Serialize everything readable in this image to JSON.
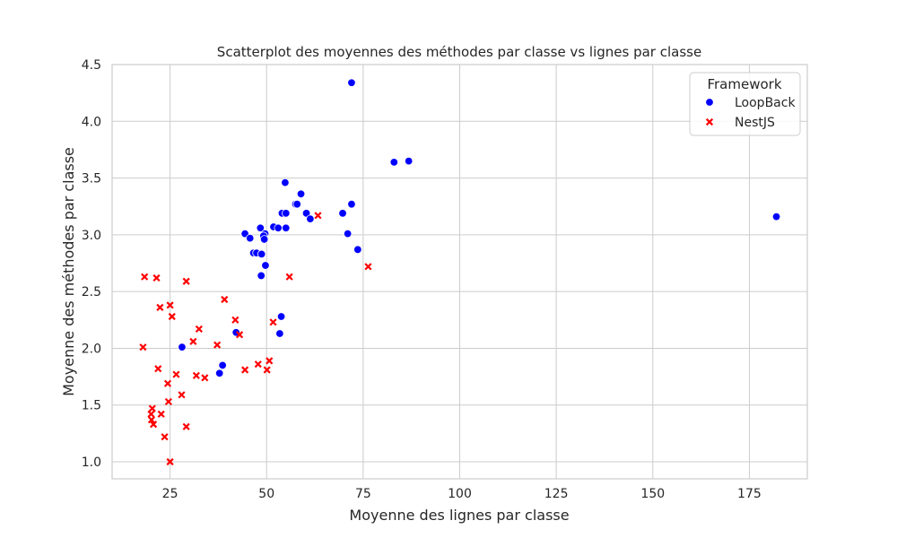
{
  "chart_data": {
    "type": "scatter",
    "title": "Scatterplot des moyennes des méthodes par classe vs lignes par classe",
    "xlabel": "Moyenne des lignes par classe",
    "ylabel": "Moyenne des méthodes par classe",
    "xlim": [
      10,
      190
    ],
    "ylim": [
      0.85,
      4.5
    ],
    "xticks": [
      25,
      50,
      75,
      100,
      125,
      150,
      175
    ],
    "yticks": [
      1.0,
      1.5,
      2.0,
      2.5,
      3.0,
      3.5,
      4.0,
      4.5
    ],
    "ytick_labels": [
      "1.0",
      "1.5",
      "2.0",
      "2.5",
      "3.0",
      "3.5",
      "4.0",
      "4.5"
    ],
    "grid": true,
    "legend": {
      "title": "Framework",
      "position": "top-right"
    },
    "series": [
      {
        "name": "LoopBack",
        "marker": "circle",
        "color": "#0000ff",
        "points": [
          [
            72.0,
            4.34
          ],
          [
            86.8,
            3.65
          ],
          [
            83.0,
            3.64
          ],
          [
            182.0,
            3.16
          ],
          [
            54.8,
            3.46
          ],
          [
            58.9,
            3.36
          ],
          [
            72.0,
            3.27
          ],
          [
            57.5,
            3.27
          ],
          [
            57.9,
            3.27
          ],
          [
            54.0,
            3.19
          ],
          [
            55.0,
            3.19
          ],
          [
            60.3,
            3.19
          ],
          [
            69.7,
            3.19
          ],
          [
            61.3,
            3.14
          ],
          [
            51.8,
            3.07
          ],
          [
            53.0,
            3.06
          ],
          [
            48.4,
            3.06
          ],
          [
            55.0,
            3.06
          ],
          [
            44.4,
            3.01
          ],
          [
            49.6,
            3.01
          ],
          [
            49.2,
            2.99
          ],
          [
            71.0,
            3.01
          ],
          [
            45.7,
            2.97
          ],
          [
            49.4,
            2.96
          ],
          [
            73.6,
            2.87
          ],
          [
            46.6,
            2.84
          ],
          [
            47.4,
            2.84
          ],
          [
            48.7,
            2.83
          ],
          [
            49.7,
            2.73
          ],
          [
            48.6,
            2.64
          ],
          [
            53.8,
            2.28
          ],
          [
            53.4,
            2.13
          ],
          [
            42.1,
            2.14
          ],
          [
            28.1,
            2.01
          ],
          [
            38.6,
            1.85
          ],
          [
            37.8,
            1.78
          ]
        ]
      },
      {
        "name": "NestJS",
        "marker": "x",
        "color": "#ff0000",
        "points": [
          [
            63.3,
            3.17
          ],
          [
            76.3,
            2.72
          ],
          [
            18.4,
            2.63
          ],
          [
            21.5,
            2.62
          ],
          [
            29.2,
            2.59
          ],
          [
            55.9,
            2.63
          ],
          [
            39.1,
            2.43
          ],
          [
            22.4,
            2.36
          ],
          [
            25.0,
            2.38
          ],
          [
            25.5,
            2.28
          ],
          [
            41.9,
            2.25
          ],
          [
            51.7,
            2.23
          ],
          [
            32.5,
            2.17
          ],
          [
            43.0,
            2.12
          ],
          [
            31.0,
            2.06
          ],
          [
            37.2,
            2.03
          ],
          [
            18.0,
            2.01
          ],
          [
            50.7,
            1.89
          ],
          [
            47.8,
            1.86
          ],
          [
            21.9,
            1.82
          ],
          [
            44.4,
            1.81
          ],
          [
            50.1,
            1.81
          ],
          [
            26.6,
            1.77
          ],
          [
            31.8,
            1.76
          ],
          [
            34.0,
            1.74
          ],
          [
            24.4,
            1.69
          ],
          [
            28.0,
            1.59
          ],
          [
            24.6,
            1.53
          ],
          [
            20.4,
            1.47
          ],
          [
            20.1,
            1.42
          ],
          [
            22.7,
            1.42
          ],
          [
            20.2,
            1.37
          ],
          [
            20.7,
            1.33
          ],
          [
            29.2,
            1.31
          ],
          [
            23.6,
            1.22
          ],
          [
            25.0,
            1.0
          ]
        ]
      }
    ]
  }
}
